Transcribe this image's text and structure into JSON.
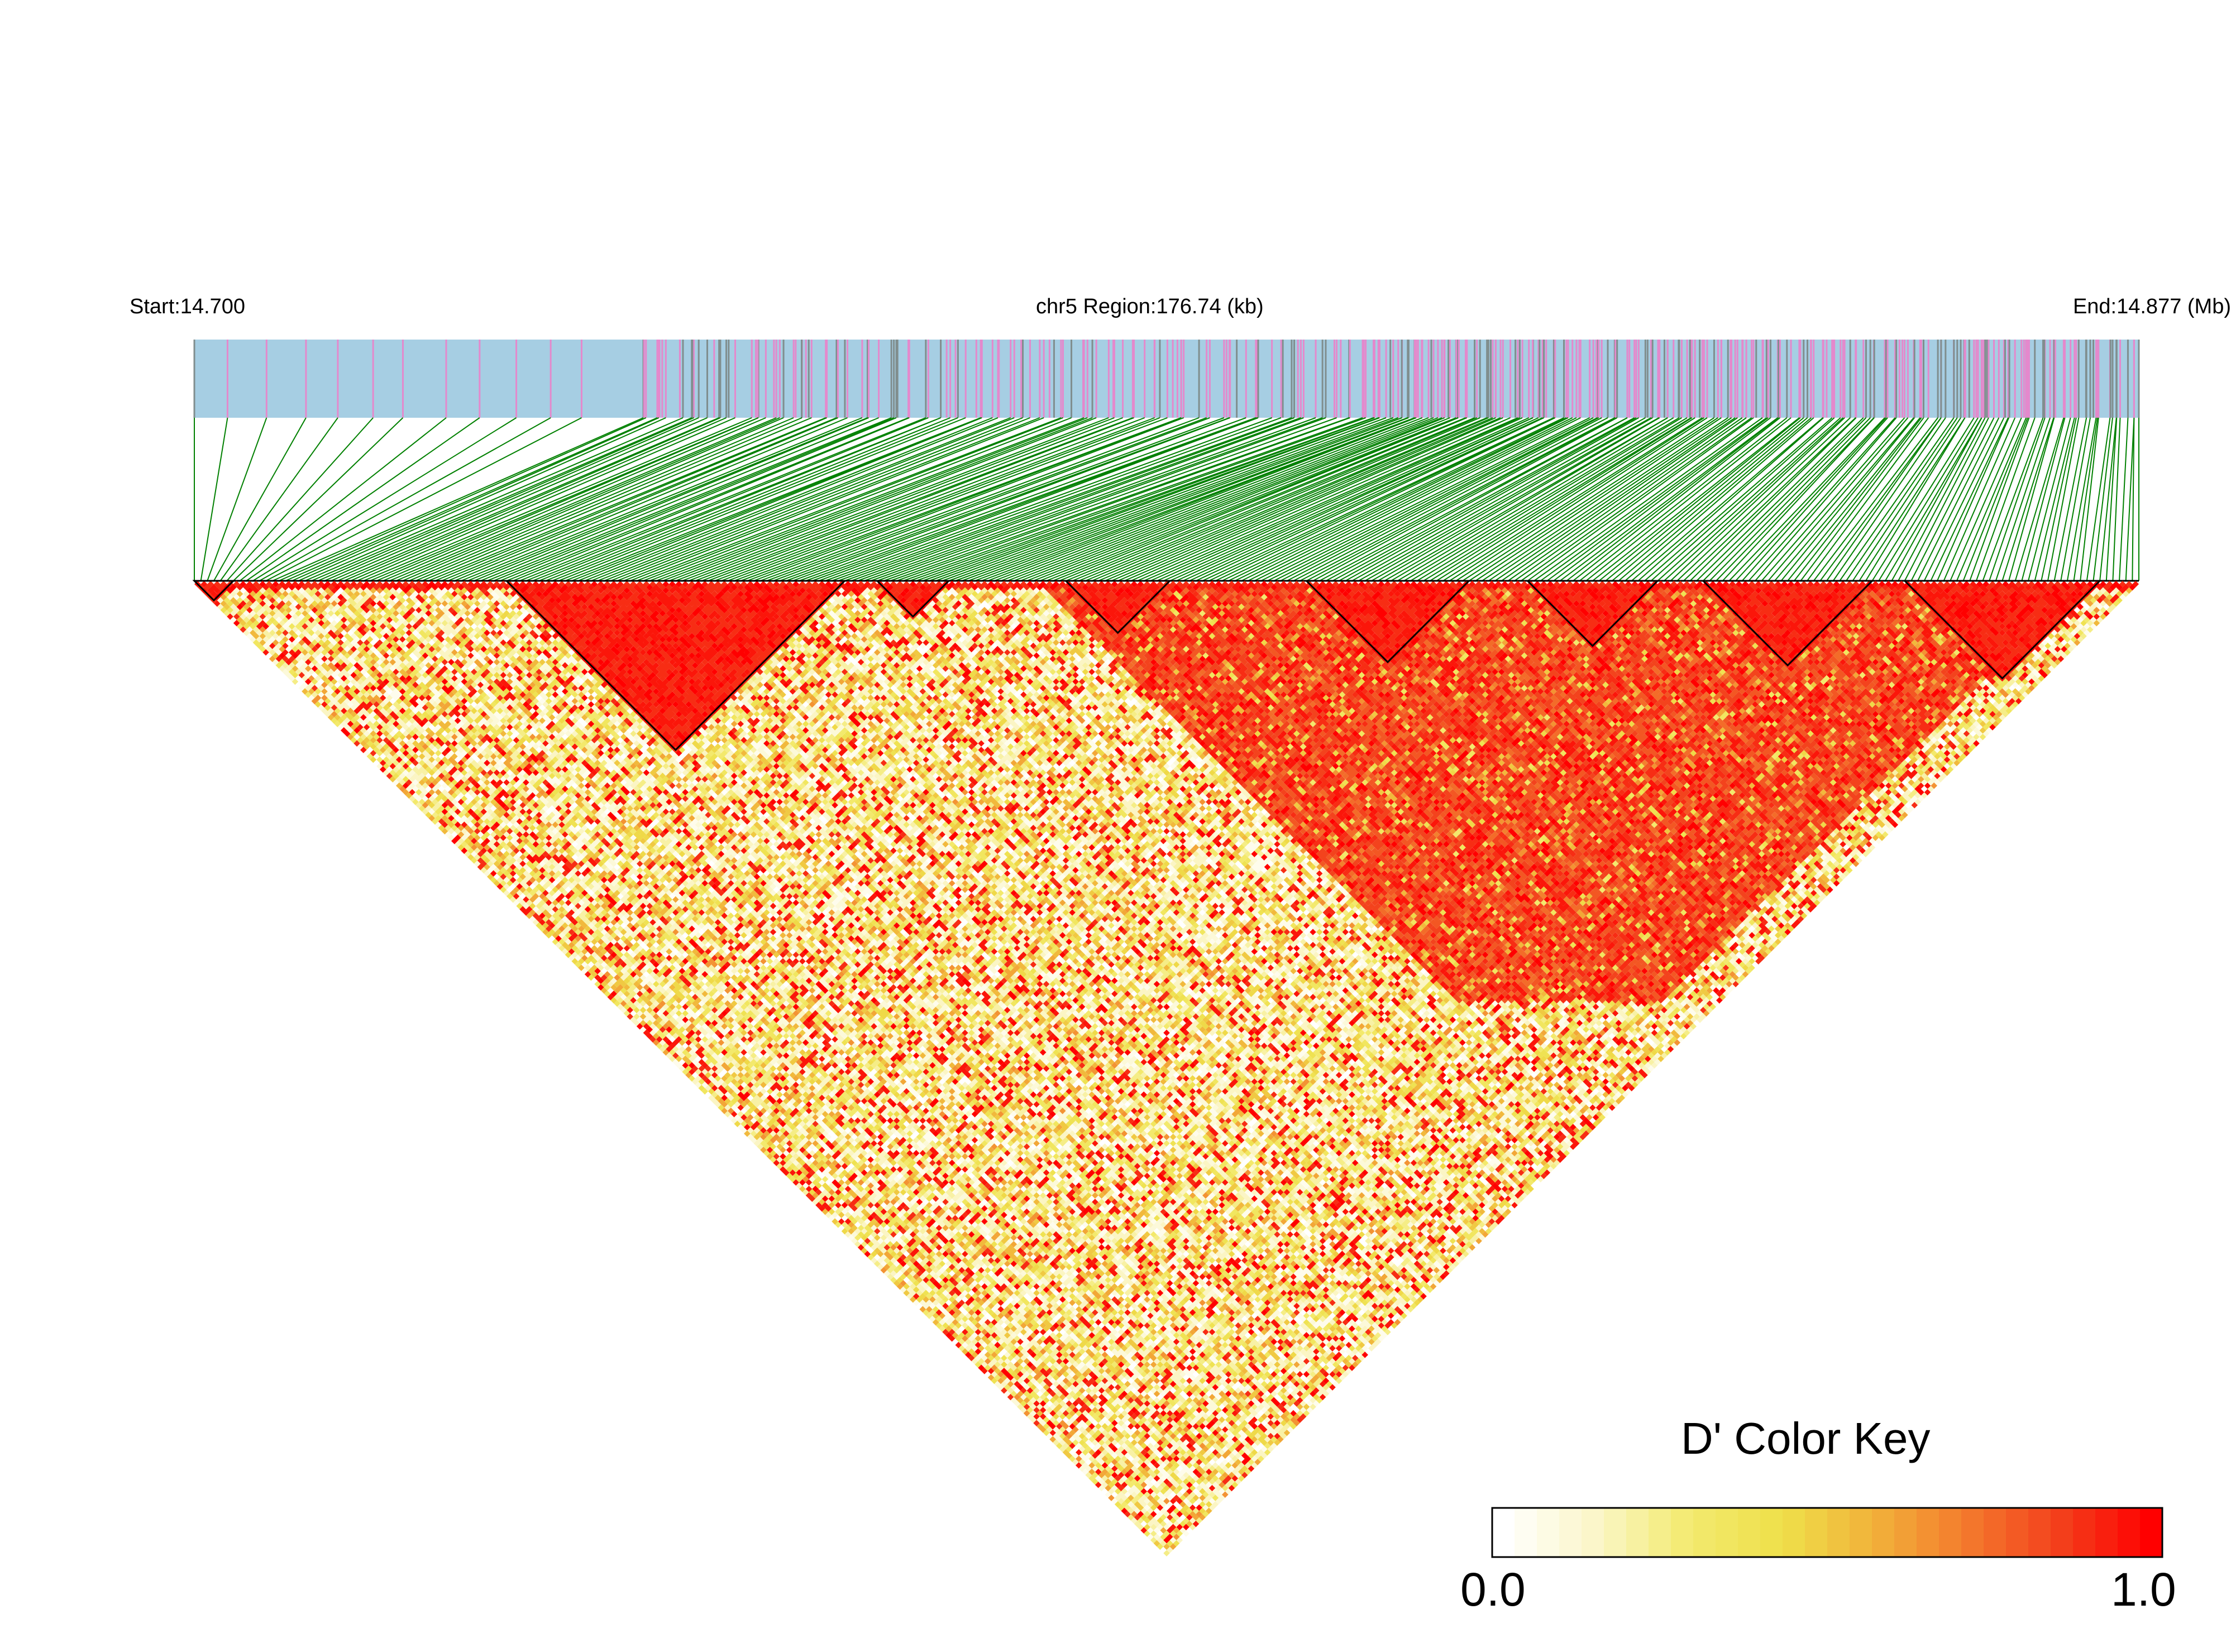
{
  "labels": {
    "start": "Start:14.700",
    "region": "chr5 Region:176.74 (kb)",
    "end": "End:14.877 (Mb)"
  },
  "color_key": {
    "title": "D' Color Key",
    "min_label": "0.0",
    "max_label": "1.0",
    "stops": [
      "#ffffff",
      "#fbf6c8",
      "#f3ea70",
      "#eee04a",
      "#f2b23a",
      "#f37a2d",
      "#f3401c",
      "#ff0000"
    ]
  },
  "colors": {
    "track_bg": "#a6cee3",
    "snp_pink": "#e489cc",
    "snp_gray": "#808e8e",
    "connector": "#008000",
    "block_outline": "#000000"
  },
  "chart_data": {
    "type": "heatmap",
    "description_free": true,
    "chromosome": "chr5",
    "region_start_mb": 14.7,
    "region_end_mb": 14.877,
    "region_kb": 176.74,
    "metric": "D'",
    "value_range": [
      0.0,
      1.0
    ],
    "snp_count": 300,
    "high_ld_blocks_snp_ranges": [
      [
        0,
        6
      ],
      [
        48,
        100
      ],
      [
        105,
        116
      ],
      [
        134,
        150
      ],
      [
        171,
        196
      ],
      [
        205,
        225
      ],
      [
        232,
        258
      ],
      [
        263,
        293
      ]
    ]
  }
}
